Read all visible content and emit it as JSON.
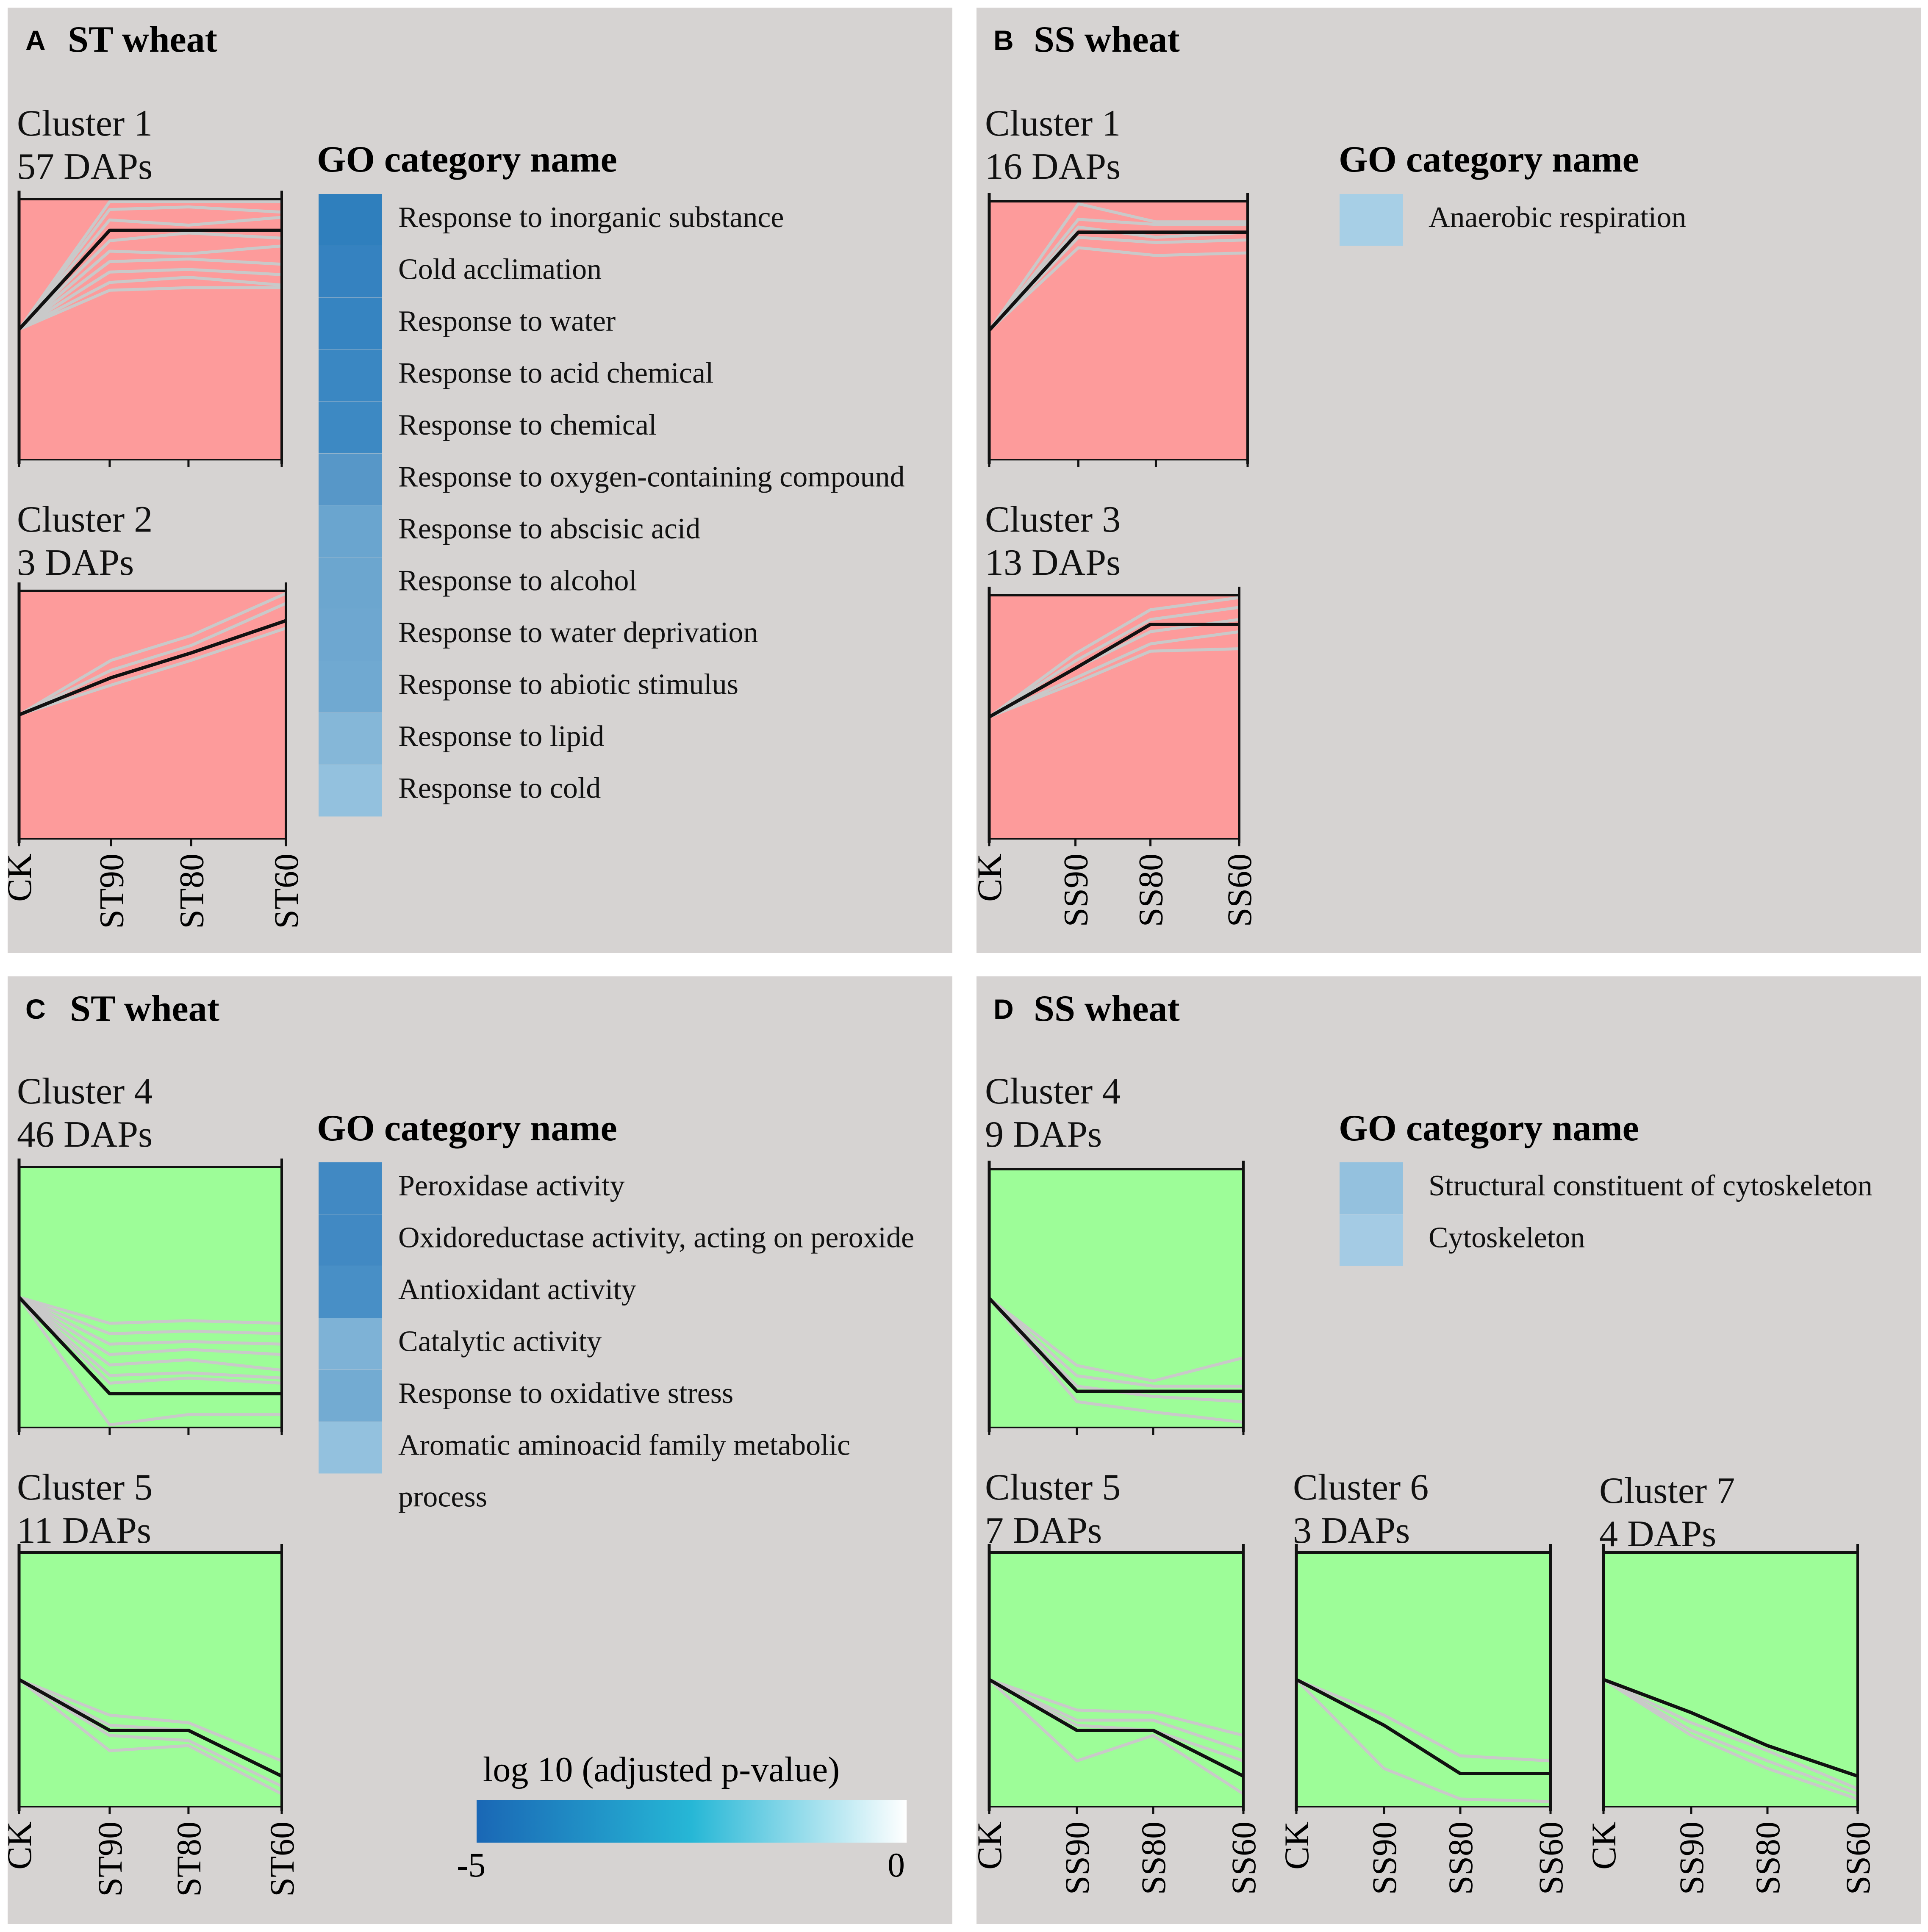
{
  "colors": {
    "panel_bg": "#d6d3d2",
    "up_fill": "#fd9b9b",
    "down_fill": "#9dfd98",
    "member_line": "#c9c9c9",
    "centroid_line": "#111111"
  },
  "chart_data": [
    {
      "panel": "A",
      "type": "line",
      "title": "ST wheat",
      "clusters": [
        {
          "name": "Cluster 1",
          "count": "57 DAPs",
          "direction": "up",
          "categories": [
            "CK",
            "ST90",
            "ST80",
            "ST60"
          ],
          "centroid": [
            0.5,
            0.88,
            0.88,
            0.88
          ],
          "members": [
            [
              0.5,
              0.99,
              0.99,
              0.99
            ],
            [
              0.5,
              0.96,
              0.97,
              0.95
            ],
            [
              0.5,
              0.92,
              0.9,
              0.93
            ],
            [
              0.5,
              0.84,
              0.87,
              0.85
            ],
            [
              0.5,
              0.8,
              0.79,
              0.82
            ],
            [
              0.5,
              0.76,
              0.77,
              0.75
            ],
            [
              0.5,
              0.72,
              0.73,
              0.71
            ],
            [
              0.5,
              0.68,
              0.7,
              0.67
            ],
            [
              0.5,
              0.65,
              0.66,
              0.66
            ]
          ],
          "ylim": [
            0,
            1
          ]
        },
        {
          "name": "Cluster 2",
          "count": "3 DAPs",
          "direction": "up",
          "categories": [
            "CK",
            "ST90",
            "ST80",
            "ST60"
          ],
          "centroid": [
            0.5,
            0.65,
            0.75,
            0.88
          ],
          "members": [
            [
              0.5,
              0.72,
              0.82,
              0.99
            ],
            [
              0.5,
              0.68,
              0.78,
              0.95
            ],
            [
              0.5,
              0.62,
              0.72,
              0.85
            ]
          ],
          "ylim": [
            0,
            1
          ]
        }
      ],
      "go_terms": [
        {
          "name": "Response to inorganic substance",
          "color": "#2f7fbd"
        },
        {
          "name": "Cold acclimation",
          "color": "#3582c0"
        },
        {
          "name": "Response to water",
          "color": "#3684c1"
        },
        {
          "name": "Response to acid chemical",
          "color": "#3a87c2"
        },
        {
          "name": "Response to chemical",
          "color": "#3d89c3"
        },
        {
          "name": "Response to oxygen-containing compound",
          "color": "#5797c8"
        },
        {
          "name": "Response to abscisic acid",
          "color": "#6aa5cf"
        },
        {
          "name": "Response to alcohol",
          "color": "#6ca6cf"
        },
        {
          "name": "Response to water deprivation",
          "color": "#6ea7d0"
        },
        {
          "name": "Response to abiotic stimulus",
          "color": "#70a9d1"
        },
        {
          "name": "Response to lipid",
          "color": "#85b7d8"
        },
        {
          "name": "Response to cold",
          "color": "#93c1de"
        }
      ]
    },
    {
      "panel": "B",
      "type": "line",
      "title": "SS wheat",
      "clusters": [
        {
          "name": "Cluster 1",
          "count": "16 DAPs",
          "direction": "up",
          "categories": [
            "CK",
            "SS90",
            "SS80",
            "SS60"
          ],
          "centroid": [
            0.5,
            0.88,
            0.88,
            0.88
          ],
          "members": [
            [
              0.5,
              0.99,
              0.92,
              0.92
            ],
            [
              0.5,
              0.93,
              0.91,
              0.91
            ],
            [
              0.5,
              0.9,
              0.86,
              0.88
            ],
            [
              0.5,
              0.86,
              0.84,
              0.85
            ],
            [
              0.5,
              0.82,
              0.79,
              0.8
            ]
          ],
          "ylim": [
            0,
            1
          ]
        },
        {
          "name": "Cluster 3",
          "count": "13 DAPs",
          "direction": "up",
          "categories": [
            "CK",
            "SS90",
            "SS80",
            "SS60"
          ],
          "centroid": [
            0.5,
            0.7,
            0.88,
            0.88
          ],
          "members": [
            [
              0.5,
              0.76,
              0.94,
              0.99
            ],
            [
              0.5,
              0.73,
              0.9,
              0.95
            ],
            [
              0.5,
              0.7,
              0.85,
              0.9
            ],
            [
              0.5,
              0.66,
              0.8,
              0.85
            ],
            [
              0.5,
              0.64,
              0.77,
              0.78
            ]
          ],
          "ylim": [
            0,
            1
          ]
        }
      ],
      "go_terms": [
        {
          "name": "Anaerobic respiration",
          "color": "#a7cfe6"
        }
      ]
    },
    {
      "panel": "C",
      "type": "line",
      "title": "ST wheat",
      "clusters": [
        {
          "name": "Cluster 4",
          "count": "46 DAPs",
          "direction": "down",
          "categories": [
            "CK",
            "ST90",
            "ST80",
            "ST60"
          ],
          "centroid": [
            0.5,
            0.13,
            0.13,
            0.13
          ],
          "members": [
            [
              0.5,
              0.4,
              0.41,
              0.4
            ],
            [
              0.5,
              0.36,
              0.37,
              0.36
            ],
            [
              0.5,
              0.32,
              0.33,
              0.32
            ],
            [
              0.5,
              0.28,
              0.3,
              0.28
            ],
            [
              0.5,
              0.24,
              0.26,
              0.22
            ],
            [
              0.5,
              0.2,
              0.21,
              0.19
            ],
            [
              0.5,
              0.17,
              0.19,
              0.17
            ],
            [
              0.5,
              0.01,
              0.05,
              0.05
            ]
          ],
          "ylim": [
            0,
            1
          ]
        },
        {
          "name": "Cluster 5",
          "count": "11 DAPs",
          "direction": "down",
          "categories": [
            "CK",
            "ST90",
            "ST80",
            "ST60"
          ],
          "centroid": [
            0.5,
            0.3,
            0.3,
            0.12
          ],
          "members": [
            [
              0.5,
              0.36,
              0.33,
              0.18
            ],
            [
              0.5,
              0.32,
              0.3,
              0.12
            ],
            [
              0.5,
              0.28,
              0.26,
              0.08
            ],
            [
              0.5,
              0.22,
              0.24,
              0.05
            ]
          ],
          "ylim": [
            0,
            1
          ]
        }
      ],
      "go_terms": [
        {
          "name": "Peroxidase activity",
          "color": "#4189c3"
        },
        {
          "name": "Oxidoreductase activity, acting on peroxide",
          "color": "#4189c3"
        },
        {
          "name": "Antioxidant activity",
          "color": "#488fc6"
        },
        {
          "name": "Catalytic activity",
          "color": "#7eb2d6"
        },
        {
          "name": "Response to oxidative stress",
          "color": "#73abd2"
        },
        {
          "name": "Aromatic aminoacid family metabolic process",
          "color": "#93c1de"
        }
      ]
    },
    {
      "panel": "D",
      "type": "line",
      "title": "SS wheat",
      "clusters": [
        {
          "name": "Cluster 4",
          "count": "9 DAPs",
          "direction": "down",
          "categories": [
            "CK",
            "SS90",
            "SS80",
            "SS60"
          ],
          "centroid": [
            0.5,
            0.14,
            0.14,
            0.14
          ],
          "members": [
            [
              0.5,
              0.24,
              0.18,
              0.27
            ],
            [
              0.5,
              0.2,
              0.16,
              0.16
            ],
            [
              0.5,
              0.16,
              0.12,
              0.1
            ],
            [
              0.5,
              0.1,
              0.06,
              0.02
            ]
          ],
          "ylim": [
            0,
            1
          ]
        },
        {
          "name": "Cluster 5",
          "count": "7 DAPs",
          "direction": "down",
          "categories": [
            "CK",
            "SS90",
            "SS80",
            "SS60"
          ],
          "centroid": [
            0.5,
            0.3,
            0.3,
            0.12
          ],
          "members": [
            [
              0.5,
              0.38,
              0.37,
              0.28
            ],
            [
              0.5,
              0.34,
              0.34,
              0.22
            ],
            [
              0.5,
              0.32,
              0.3,
              0.18
            ],
            [
              0.5,
              0.18,
              0.28,
              0.05
            ]
          ],
          "ylim": [
            0,
            1
          ]
        },
        {
          "name": "Cluster 6",
          "count": "3 DAPs",
          "direction": "down",
          "categories": [
            "CK",
            "SS90",
            "SS80",
            "SS60"
          ],
          "centroid": [
            0.5,
            0.32,
            0.13,
            0.13
          ],
          "members": [
            [
              0.5,
              0.36,
              0.2,
              0.18
            ],
            [
              0.5,
              0.15,
              0.03,
              0.02
            ]
          ],
          "ylim": [
            0,
            1
          ]
        },
        {
          "name": "Cluster 7",
          "count": "4 DAPs",
          "direction": "down",
          "categories": [
            "CK",
            "SS90",
            "SS80",
            "SS60"
          ],
          "centroid": [
            0.5,
            0.37,
            0.24,
            0.12
          ],
          "members": [
            [
              0.5,
              0.33,
              0.22,
              0.07
            ],
            [
              0.5,
              0.3,
              0.18,
              0.05
            ],
            [
              0.5,
              0.28,
              0.15,
              0.03
            ]
          ],
          "ylim": [
            0,
            1
          ]
        }
      ],
      "go_terms": [
        {
          "name": "Structural constituent of cytoskeleton",
          "color": "#94c1de"
        },
        {
          "name": "Cytoskeleton",
          "color": "#a4cbe4"
        }
      ]
    }
  ],
  "labels": {
    "panel_a": "A",
    "panel_b": "B",
    "panel_c": "C",
    "panel_d": "D",
    "go_title": "GO category name",
    "go_c_line1": "Aromatic aminoacid family metabolic",
    "go_c_line2": "process"
  },
  "colorbar": {
    "title": "log 10 (adjusted p-value)",
    "min_label": "-5",
    "max_label": "0",
    "min": -5,
    "max": 0,
    "stops": [
      "#1a67b5",
      "#26b7d6",
      "#ffffff"
    ]
  }
}
